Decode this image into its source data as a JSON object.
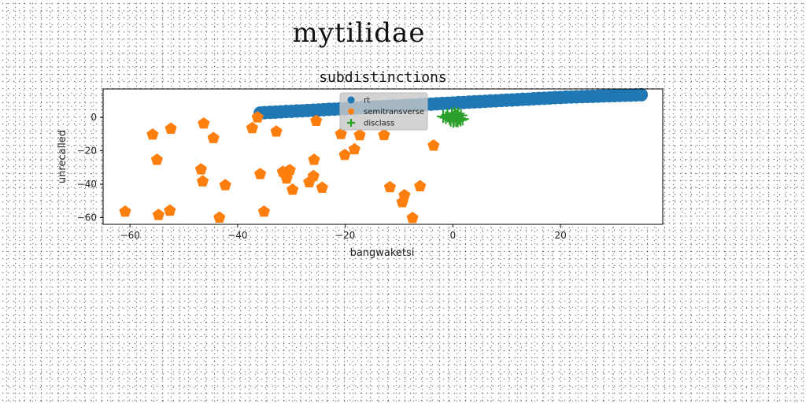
{
  "figure": {
    "suptitle": "mytilidae"
  },
  "chart_data": {
    "type": "scatter",
    "title": "subdistinctions",
    "xlabel": "bangwaketsi",
    "ylabel": "unrecalled",
    "xlim": [
      -65,
      39
    ],
    "ylim": [
      -64,
      17
    ],
    "xticks": [
      -60,
      -40,
      -20,
      0,
      20
    ],
    "yticks": [
      -60,
      -40,
      -20,
      0
    ],
    "grid": false,
    "legend_position": "upper center",
    "series": [
      {
        "name": "rt",
        "marker": "circle",
        "color": "#1f77b4",
        "x": [
          -35.8,
          -35,
          -34,
          -33,
          -32,
          -31,
          -30,
          -29,
          -28,
          -27,
          -26,
          -25,
          -24,
          -23,
          -22,
          -21,
          -20,
          -19,
          -18,
          -17,
          -16,
          -15,
          -14,
          -13,
          -12,
          -11,
          -10,
          -9,
          -8,
          -7,
          -6,
          -5,
          -4,
          -3,
          -2,
          -1,
          0,
          1,
          2,
          3,
          4,
          5,
          6,
          7,
          8,
          9,
          10,
          11,
          12,
          13,
          14,
          15,
          16,
          17,
          18,
          19,
          20,
          21,
          22,
          23,
          24,
          25,
          26,
          27,
          28,
          29,
          30,
          31,
          32,
          33,
          34,
          35
        ],
        "y": [
          2.6,
          2.8,
          3.0,
          3.1,
          3.3,
          3.5,
          3.6,
          3.8,
          3.9,
          4.1,
          4.3,
          4.4,
          4.6,
          4.8,
          4.9,
          5.1,
          5.3,
          5.4,
          5.6,
          5.8,
          5.9,
          6.1,
          6.3,
          6.4,
          6.6,
          6.8,
          6.9,
          7.1,
          7.3,
          7.4,
          7.6,
          7.8,
          7.9,
          8.1,
          8.3,
          8.4,
          8.6,
          8.8,
          8.9,
          9.1,
          9.3,
          9.4,
          9.6,
          9.8,
          9.9,
          10.1,
          10.3,
          10.4,
          10.6,
          10.8,
          10.9,
          11.1,
          11.3,
          11.4,
          11.6,
          11.8,
          11.9,
          12.1,
          12.2,
          12.3,
          12.4,
          12.5,
          12.6,
          12.7,
          12.8,
          12.9,
          13.0,
          13.1,
          13.2,
          13.3,
          13.4,
          13.5
        ]
      },
      {
        "name": "semitransverse",
        "marker": "pentagon",
        "color": "#ff7f0e",
        "x": [
          -60.9,
          -55.8,
          -55,
          -54.7,
          -52.6,
          -52.4,
          -46.8,
          -46.5,
          -46.3,
          -44.5,
          -43.4,
          -42.3,
          -37.3,
          -36.3,
          -35.8,
          -35.1,
          -32.8,
          -31.6,
          -30.9,
          -30.7,
          -30.3,
          -29.8,
          -26.7,
          -25.9,
          -25.8,
          -25.4,
          -24.3,
          -20.8,
          -20.1,
          -18.3,
          -17.3,
          -12.8,
          -11.7,
          -9.4,
          -9.0,
          -7.5,
          -6.1,
          -3.6
        ],
        "y": [
          -56.4,
          -10.3,
          -25.4,
          -58.4,
          -55.8,
          -6.8,
          -31.1,
          -38.3,
          -3.7,
          -12.4,
          -60.0,
          -40.6,
          -6.4,
          0.0,
          -33.9,
          -56.4,
          -8.5,
          -32.6,
          -36.6,
          -32.4,
          -31.6,
          -43.3,
          -38.8,
          -35.2,
          -25.4,
          -2.1,
          -42.1,
          -10.0,
          -22.5,
          -19.1,
          -10.7,
          -10.6,
          -41.8,
          -50.8,
          -46.6,
          -60.2,
          -41.2,
          -16.9
        ]
      },
      {
        "name": "disclass",
        "marker": "plus",
        "color": "#2ca02c",
        "x": [
          -1.8,
          -1.0,
          -0.6,
          -0.2,
          0.0,
          0.2,
          0.4,
          0.6,
          0.8,
          1.0,
          1.2,
          1.5,
          1.8,
          0.1,
          -0.4,
          0.9,
          0.3,
          1.4,
          -1.3,
          0.7
        ],
        "y": [
          0.5,
          1.5,
          -0.8,
          2.0,
          0.0,
          -1.5,
          1.0,
          -2.0,
          0.3,
          2.2,
          -0.5,
          1.2,
          -1.0,
          -2.5,
          -1.8,
          -2.2,
          2.6,
          -1.6,
          -0.2,
          0.8
        ]
      }
    ]
  }
}
